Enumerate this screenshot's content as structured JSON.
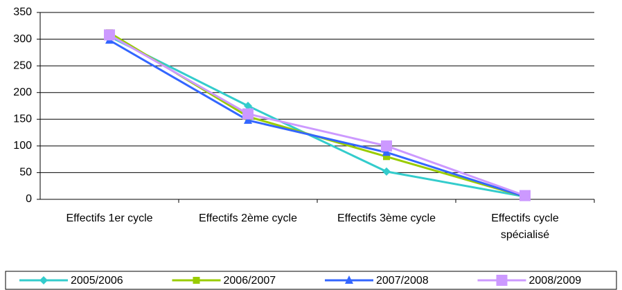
{
  "chart_data": {
    "type": "line",
    "categories": [
      "Effectifs 1er cycle",
      "Effectifs 2ème cycle",
      "Effectifs 3ème cycle",
      "Effectifs cycle spécialisé"
    ],
    "series": [
      {
        "name": "2005/2006",
        "color": "#33cccc",
        "marker": "diamond",
        "values": [
          305,
          175,
          52,
          5
        ]
      },
      {
        "name": "2006/2007",
        "color": "#99cc00",
        "marker": "square",
        "values": [
          312,
          155,
          80,
          5
        ]
      },
      {
        "name": "2007/2008",
        "color": "#3366ff",
        "marker": "triangle",
        "values": [
          298,
          148,
          88,
          5
        ]
      },
      {
        "name": "2008/2009",
        "color": "#cc99ff",
        "marker": "bigsquare",
        "values": [
          308,
          160,
          100,
          7
        ]
      }
    ],
    "ylim": [
      0,
      350
    ],
    "yticks": [
      0,
      50,
      100,
      150,
      200,
      250,
      300,
      350
    ],
    "grid": true,
    "legend": "bottom"
  }
}
